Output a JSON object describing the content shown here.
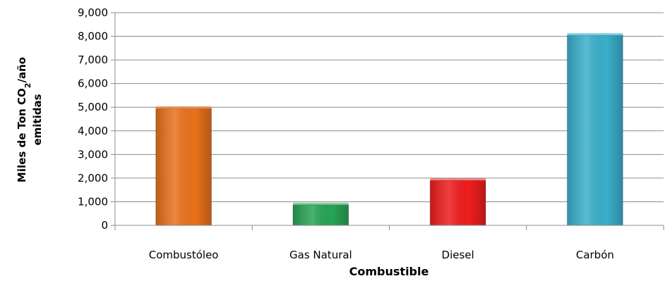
{
  "chart_data": {
    "type": "bar",
    "categories": [
      "Combustóleo",
      "Gas Natural",
      "Diesel",
      "Carbón"
    ],
    "values": [
      4950,
      870,
      1900,
      8050
    ],
    "colors": [
      "#e9711b",
      "#28a455",
      "#ee1d1d",
      "#3aafcb"
    ],
    "xlabel": "Combustible",
    "ylabel": {
      "line1_prefix": "Miles de Ton CO",
      "line1_sub": "2",
      "line1_suffix": "/año",
      "line2": "emitidas"
    },
    "ylim": [
      0,
      9000
    ],
    "yticks": [
      "0",
      "1,000",
      "2,000",
      "3,000",
      "4,000",
      "5,000",
      "6,000",
      "7,000",
      "8,000",
      "9,000"
    ],
    "grid": true,
    "legend": "none"
  }
}
